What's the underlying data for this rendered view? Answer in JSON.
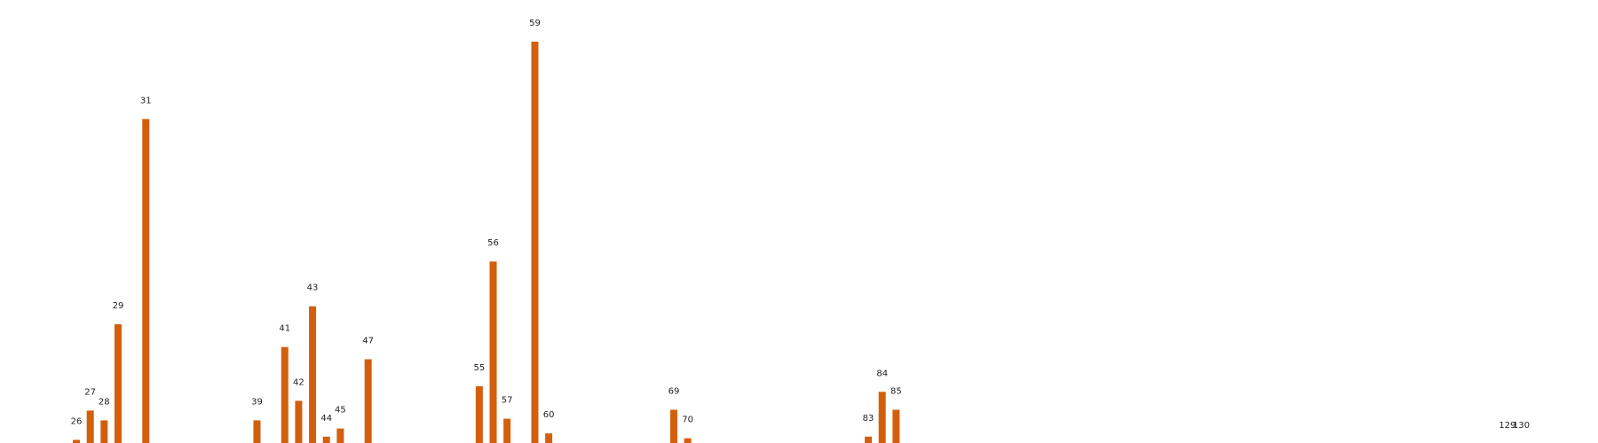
{
  "chart_data": {
    "type": "bar",
    "categories": [
      "26",
      "27",
      "28",
      "29",
      "31",
      "39",
      "41",
      "42",
      "43",
      "44",
      "45",
      "47",
      "55",
      "56",
      "57",
      "59",
      "60",
      "69",
      "70",
      "83",
      "84",
      "85",
      "129",
      "130"
    ],
    "values": [
      0.6,
      4.2,
      3.0,
      14.8,
      40.0,
      3.0,
      12.0,
      5.4,
      17.0,
      1.0,
      2.0,
      10.5,
      7.2,
      22.5,
      3.2,
      49.5,
      1.4,
      4.3,
      0.8,
      1.0,
      6.5,
      4.3,
      0.1,
      0.1
    ],
    "colors": {
      "bar": "#d35f0d"
    },
    "grid": false,
    "ylim": [
      0,
      52
    ]
  }
}
